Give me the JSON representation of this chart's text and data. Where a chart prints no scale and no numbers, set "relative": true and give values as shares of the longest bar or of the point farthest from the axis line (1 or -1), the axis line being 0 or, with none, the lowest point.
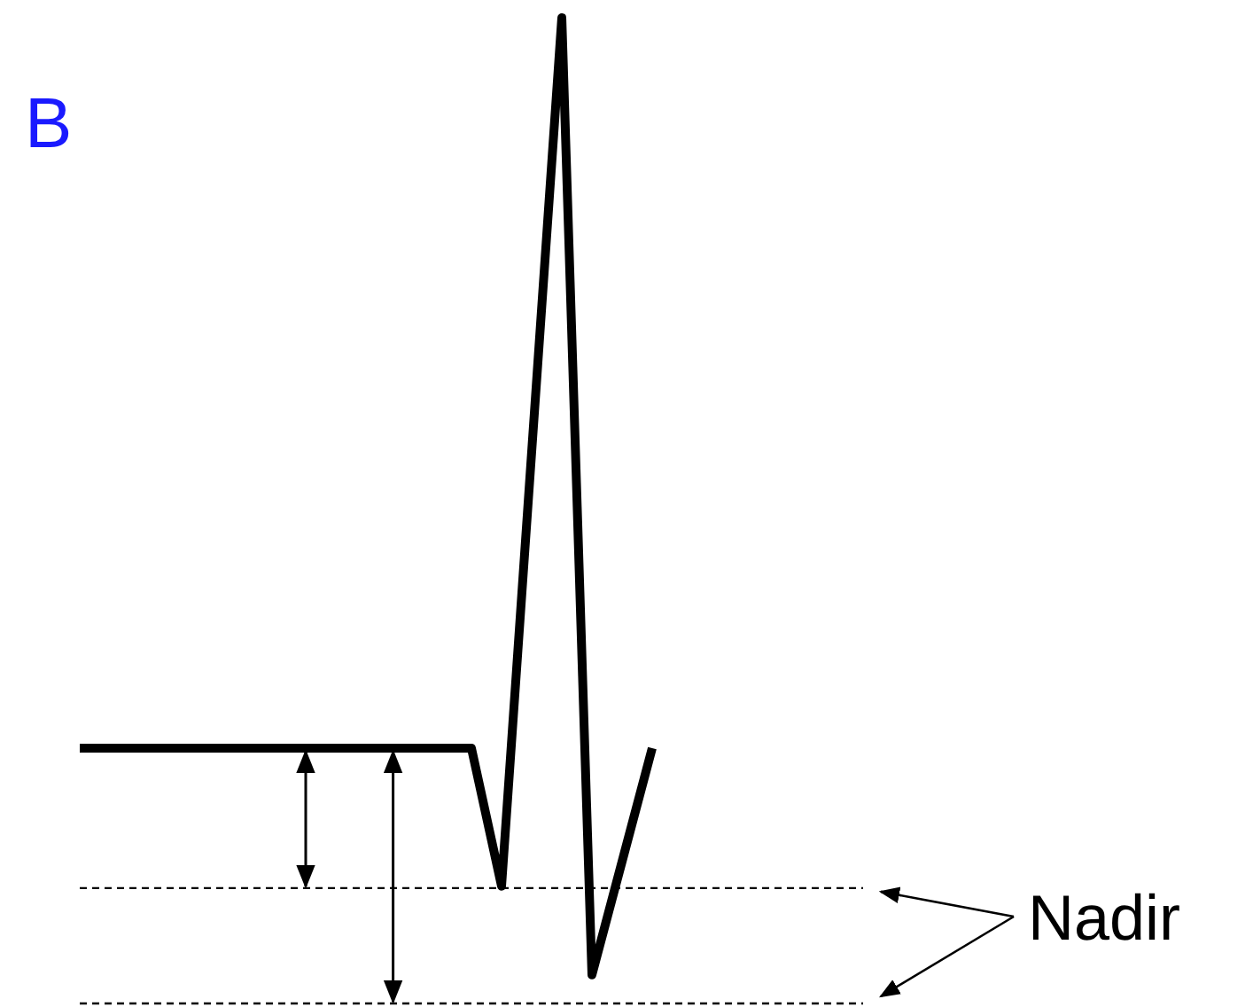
{
  "chart_data": {
    "type": "line",
    "relative": true,
    "title": "B",
    "grid": false,
    "categories": [
      null,
      null,
      null,
      null,
      null,
      null,
      null,
      null,
      null,
      null,
      null,
      null,
      null,
      null,
      null,
      null,
      null,
      null,
      null,
      null,
      null,
      null,
      null,
      null,
      null,
      null,
      null
    ],
    "series": [
      {
        "color": "#000000",
        "values": [
          0.259,
          0.259,
          0.259,
          0.259,
          0.259,
          0.259,
          0.259,
          0.259,
          0.259,
          0.259,
          0.259,
          0.259,
          0.259,
          0.259,
          0.119,
          0.56,
          1,
          0.029,
          0.144,
          0.259,
          null,
          null,
          null,
          null,
          null,
          null,
          null
        ]
      },
      {
        "color": "#000000",
        "line_style": "dashed",
        "values": [
          0.117,
          0.117,
          0.117,
          0.117,
          0.117,
          0.117,
          0.117,
          0.117,
          0.117,
          0.117,
          0.117,
          0.117,
          0.117,
          0.117,
          0.117,
          0.117,
          0.117,
          0.117,
          0.117,
          0.117,
          0.117,
          0.117,
          0.117,
          0.117,
          0.117,
          0.117,
          0.117
        ]
      },
      {
        "color": "#000000",
        "line_style": "dashed",
        "values": [
          0,
          0,
          0,
          0,
          0,
          0,
          0,
          0,
          0,
          0,
          0,
          0,
          0,
          0,
          0,
          0,
          0,
          0,
          0,
          0,
          0,
          0,
          0,
          0,
          0,
          0,
          0
        ]
      }
    ],
    "annotations": [
      "Nadir"
    ]
  }
}
